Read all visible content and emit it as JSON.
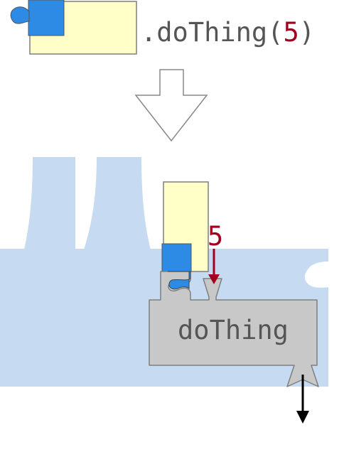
{
  "code": {
    "method": ".doThing(",
    "argument": "5",
    "close": ")"
  },
  "diagram": {
    "argument_label": "5",
    "function_label": "doThing"
  },
  "colors": {
    "background_blue": "#c6daf1",
    "object_yellow": "#ffffc8",
    "piece_blue": "#2d8be5",
    "function_gray": "#c8c8c8",
    "outline_gray": "#7f7f7f",
    "code_text": "#555555",
    "argument_red": "#a0001e",
    "output_arrow": "#000000"
  },
  "icons": {
    "transform_arrow": "down-arrow-icon",
    "argument_arrow": "arrow-down-icon",
    "output_arrow": "arrow-down-icon"
  }
}
